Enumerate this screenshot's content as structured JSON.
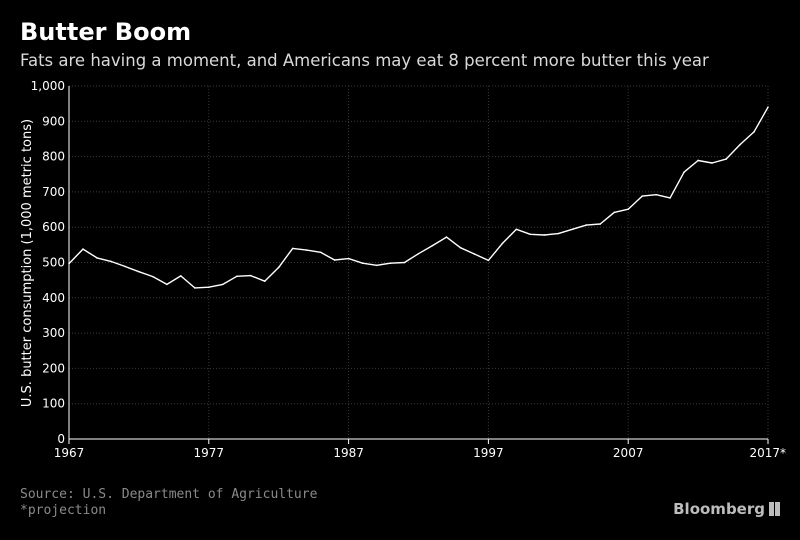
{
  "header": {
    "title": "Butter Boom",
    "subtitle": "Fats are having a moment, and Americans may eat 8 percent more butter this year"
  },
  "footer": {
    "source": "Source: U.S. Department of Agriculture",
    "note": "*projection",
    "brand": "Bloomberg"
  },
  "colors": {
    "background": "#000000",
    "line": "#ffffff",
    "grid": "#3a3a3a",
    "muted": "#8a8a8a"
  },
  "chart_data": {
    "type": "line",
    "title": "Butter Boom",
    "subtitle": "Fats are having a moment, and Americans may eat 8 percent more butter this year",
    "xlabel": "",
    "ylabel": "U.S. butter consumption (1,000 metric tons)",
    "xlim": [
      1967,
      2017
    ],
    "ylim": [
      0,
      1000
    ],
    "grid": true,
    "x_ticks": [
      1967,
      1977,
      1987,
      1997,
      2007,
      2017
    ],
    "x_tick_labels": [
      "1967",
      "1977",
      "1987",
      "1997",
      "2007",
      "2017*"
    ],
    "y_ticks": [
      0,
      100,
      200,
      300,
      400,
      500,
      600,
      700,
      800,
      900,
      1000
    ],
    "y_tick_labels": [
      "0",
      "100",
      "200",
      "300",
      "400",
      "500",
      "600",
      "700",
      "800",
      "900",
      "1,000"
    ],
    "x": [
      1967,
      1968,
      1969,
      1970,
      1971,
      1972,
      1973,
      1974,
      1975,
      1976,
      1977,
      1978,
      1979,
      1980,
      1981,
      1982,
      1983,
      1984,
      1985,
      1986,
      1987,
      1988,
      1989,
      1990,
      1991,
      1992,
      1993,
      1994,
      1995,
      1996,
      1997,
      1998,
      1999,
      2000,
      2001,
      2002,
      2003,
      2004,
      2005,
      2006,
      2007,
      2008,
      2009,
      2010,
      2011,
      2012,
      2013,
      2014,
      2015,
      2016,
      2017
    ],
    "y": [
      497,
      538,
      513,
      503,
      489,
      474,
      460,
      438,
      462,
      428,
      430,
      438,
      461,
      463,
      447,
      486,
      540,
      535,
      529,
      507,
      511,
      498,
      492,
      498,
      500,
      525,
      548,
      572,
      542,
      524,
      506,
      554,
      594,
      580,
      578,
      582,
      594,
      606,
      609,
      642,
      651,
      688,
      692,
      683,
      756,
      789,
      782,
      793,
      834,
      870,
      940
    ]
  }
}
